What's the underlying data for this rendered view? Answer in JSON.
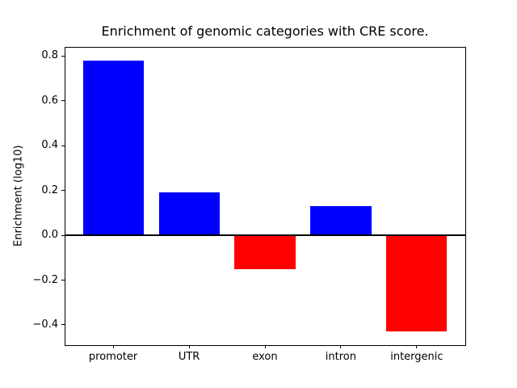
{
  "chart_data": {
    "type": "bar",
    "title": "Enrichment of genomic categories with CRE score.",
    "xlabel": "",
    "ylabel": "Enrichment (log10)",
    "categories": [
      "promoter",
      "UTR",
      "exon",
      "intron",
      "intergenic"
    ],
    "values": [
      0.78,
      0.19,
      -0.15,
      0.13,
      -0.43
    ],
    "bar_colors": [
      "#0000ff",
      "#0000ff",
      "#ff0000",
      "#0000ff",
      "#ff0000"
    ],
    "positive_color": "#0000ff",
    "negative_color": "#ff0000",
    "ylim": [
      -0.4905,
      0.8405
    ],
    "xlim": [
      -0.64,
      4.64
    ],
    "bar_width_units": 0.8,
    "yticks": [
      0.8,
      0.6,
      0.4,
      0.2,
      0.0,
      -0.2,
      -0.4
    ],
    "ytick_labels": [
      "0.8",
      "0.6",
      "0.4",
      "0.2",
      "0.0",
      "−0.2",
      "−0.4"
    ],
    "zero_line": true,
    "grid": false,
    "legend": null,
    "axis_color": "#000000",
    "background_color": "#ffffff"
  }
}
